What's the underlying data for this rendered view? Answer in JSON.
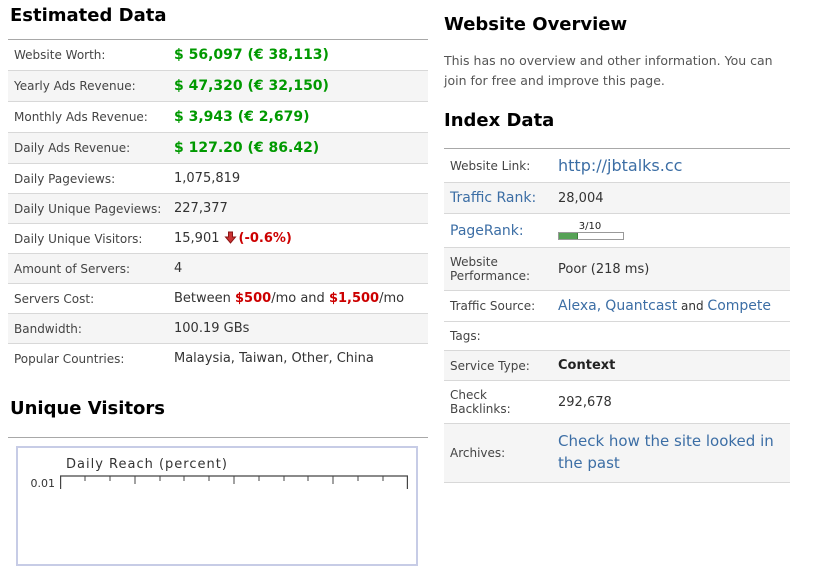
{
  "colors": {
    "green": "#009900",
    "red": "#cc0000",
    "link_blue": "#3c6ea5",
    "row_alt_bg": "#f5f5f5",
    "graph_border": "#c7cce6"
  },
  "estimated": {
    "heading": "Estimated Data",
    "rows": [
      {
        "label": "Website Worth:",
        "value": "$ 56,097 (€ 38,113)"
      },
      {
        "label": "Yearly Ads Revenue:",
        "value": "$ 47,320 (€ 32,150)"
      },
      {
        "label": "Monthly Ads Revenue:",
        "value": "$ 3,943 (€ 2,679)"
      },
      {
        "label": "Daily Ads Revenue:",
        "value": "$ 127.20 (€ 86.42)"
      },
      {
        "label": "Daily Pageviews:",
        "value": "1,075,819"
      },
      {
        "label": "Daily Unique Pageviews:",
        "value": "227,377"
      },
      {
        "label": "Daily Unique Visitors:",
        "value": "15,901",
        "change": "(-0.6%)",
        "trend": "down"
      },
      {
        "label": "Amount of Servers:",
        "value": "4"
      },
      {
        "label": "Servers Cost:",
        "parts": [
          "Between ",
          "$500",
          "/mo and ",
          "$1,500",
          "/mo"
        ]
      },
      {
        "label": "Bandwidth:",
        "value": "100.19 GBs"
      },
      {
        "label": "Popular Countries:",
        "value": "Malaysia, Taiwan, Other, China"
      }
    ]
  },
  "unique_visitors": {
    "heading": "Unique Visitors",
    "chart": {
      "type": "line",
      "title": "Daily Reach (percent)",
      "visible_ytick": "0.01"
    }
  },
  "overview": {
    "heading": "Website Overview",
    "text": "This has no overview and other information. You can join for free and improve this page."
  },
  "index": {
    "heading": "Index Data",
    "rows": [
      {
        "label": "Website Link:",
        "value": "http://jbtalks.cc"
      },
      {
        "label": "Traffic Rank:",
        "value": "28,004"
      },
      {
        "label": "PageRank:",
        "value": "3/10",
        "percent": 30
      },
      {
        "label": "Website Performance:",
        "value": "Poor (218 ms)"
      },
      {
        "label": "Traffic Source:",
        "links": [
          "Alexa,",
          "Quantcast",
          "Compete"
        ],
        "conjunction": " and "
      },
      {
        "label": "Tags:",
        "value": ""
      },
      {
        "label": "Service Type:",
        "value": "Context"
      },
      {
        "label": "Check Backlinks:",
        "value": "292,678"
      },
      {
        "label": "Archives:",
        "value": "Check how the site looked in the past"
      }
    ]
  }
}
